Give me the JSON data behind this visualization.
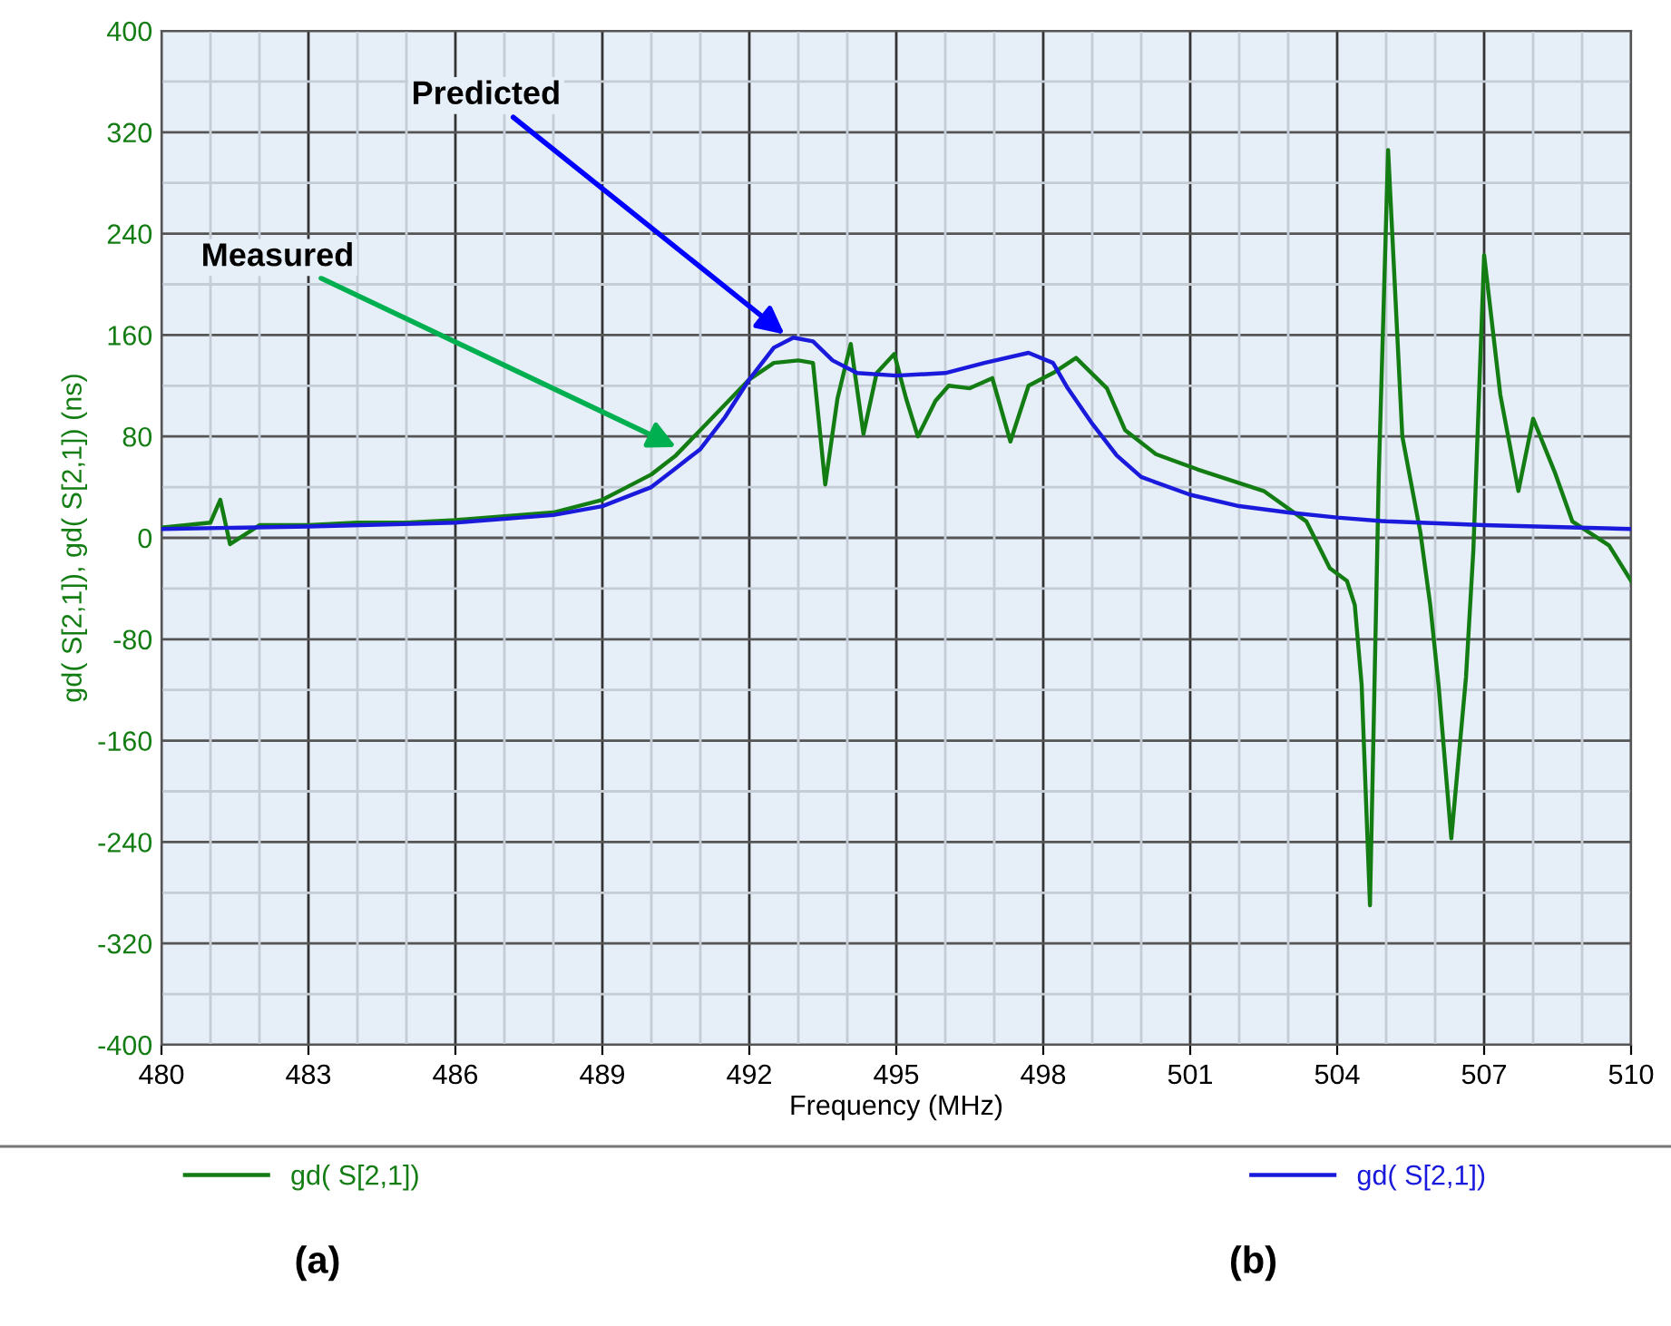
{
  "chart_data": {
    "type": "line",
    "xlabel": "Frequency (MHz)",
    "ylabel": "gd( S[2,1]), gd( S[2,1]) (ns)",
    "xlim": [
      480,
      510
    ],
    "xticks": [
      480,
      483,
      486,
      489,
      492,
      495,
      498,
      501,
      504,
      507,
      510
    ],
    "ylim": [
      -400,
      400
    ],
    "yticks": [
      -400,
      -320,
      -240,
      -160,
      -80,
      0,
      80,
      160,
      240,
      320,
      400
    ],
    "grid": true,
    "legend": "bottom",
    "series": [
      {
        "name": "gd( S[2,1])",
        "color": "#137d13",
        "x": [
          480,
          480.5,
          481,
          481.2,
          481.4,
          482,
          483,
          484,
          485,
          486,
          487,
          488,
          489,
          489.5,
          490,
          490.5,
          491,
          491.5,
          492,
          492.5,
          493,
          493.3,
          493.55,
          493.8,
          494.07,
          494.33,
          494.6,
          494.96,
          495.2,
          495.44,
          495.8,
          496.07,
          496.5,
          496.96,
          497.33,
          497.7,
          498.2,
          498.67,
          499.3,
          499.67,
          500.3,
          501.15,
          502.5,
          503.37,
          503.85,
          504.2,
          504.36,
          504.5,
          504.67,
          504.85,
          505.04,
          505.33,
          505.7,
          505.9,
          506.07,
          506.33,
          506.63,
          506.78,
          507.0,
          507.33,
          507.7,
          508.0,
          508.44,
          508.8,
          509.55,
          510
        ],
        "values": [
          8,
          10,
          12,
          30,
          -5,
          10,
          10,
          12,
          12,
          14,
          17,
          20,
          30,
          40,
          50,
          65,
          85,
          105,
          125,
          138,
          140,
          138,
          42,
          110,
          153,
          82,
          130,
          145,
          110,
          80,
          108,
          120,
          118,
          126,
          76,
          120,
          130,
          142,
          118,
          85,
          66,
          54,
          37,
          13,
          -24,
          -34,
          -53,
          -116,
          -290,
          50,
          306,
          80,
          4,
          -53,
          -116,
          -237,
          -110,
          -10,
          223,
          113,
          37,
          94,
          52,
          13,
          -6,
          -34
        ]
      },
      {
        "name": "gd( S[2,1])",
        "color": "#1a1adc",
        "x": [
          480,
          483,
          486,
          488,
          489,
          490,
          490.5,
          491,
          491.5,
          492,
          492.5,
          492.9,
          493.3,
          493.7,
          494.2,
          495,
          496,
          496.8,
          497.7,
          498.2,
          498.5,
          499,
          499.5,
          500,
          501,
          502,
          503,
          504,
          505,
          507,
          510
        ],
        "values": [
          7,
          9,
          12,
          18,
          25,
          40,
          55,
          70,
          95,
          125,
          150,
          158,
          155,
          140,
          130,
          128,
          130,
          138,
          146,
          138,
          118,
          90,
          65,
          48,
          34,
          25,
          20,
          16,
          13,
          10,
          7
        ]
      }
    ],
    "annotations": [
      {
        "text": "Measured",
        "x": 490.6,
        "y": 70
      },
      {
        "text": "Predicted",
        "x": 492.8,
        "y": 158
      },
      "(a)",
      "(b)"
    ]
  }
}
